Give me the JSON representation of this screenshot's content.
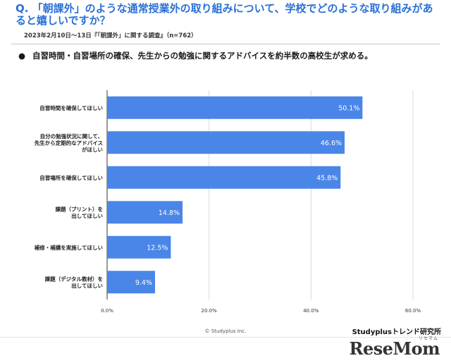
{
  "question": "Q. 「朝課外」のような通常授業外の取り組みについて、学校でどのような取り組みがあると嬉しいですか？",
  "survey_note": "2023年2月10日～13日『「朝課外」に関する調査』（n=762）",
  "summary": "自習時間・自習場所の確保、先生からの勉強に関するアドバイスを約半数の高校生が求める。",
  "copyright": "© Studyplus Inc.",
  "brand": "Studyplusトレンド研究所",
  "watermark": "ReseMom",
  "watermark_kana": "リセマム",
  "colors": {
    "accent": "#2a70d6",
    "bar": "#4a86e8"
  },
  "chart_data": {
    "type": "bar",
    "orientation": "horizontal",
    "categories": [
      [
        "自習時間を確保してほしい"
      ],
      [
        "自分の勉強状況に関して、",
        "先生から定期的なアドバイス",
        "がほしい"
      ],
      [
        "自習場所を確保してほしい"
      ],
      [
        "課題（プリント）を",
        "出してほしい"
      ],
      [
        "補修・補講を実施してほしい"
      ],
      [
        "課題（デジタル教材）を",
        "出してほしい"
      ]
    ],
    "values": [
      50.1,
      46.6,
      45.8,
      14.8,
      12.5,
      9.4
    ],
    "value_labels": [
      "50.1%",
      "46.6%",
      "45.8%",
      "14.8%",
      "12.5%",
      "9.4%"
    ],
    "xlim": [
      0,
      60
    ],
    "ticks": [
      0,
      20,
      40,
      60
    ],
    "tick_labels": [
      "0.0%",
      "20.0%",
      "40.0%",
      "60.0%"
    ],
    "grid": true
  }
}
